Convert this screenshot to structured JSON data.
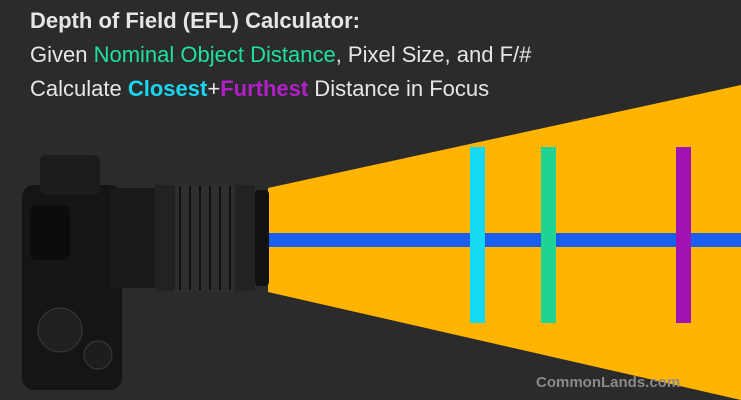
{
  "header": {
    "lines": [
      {
        "parts": [
          "Depth of Field (EFL) Calculator:"
        ]
      },
      {
        "parts": [
          "Given ",
          "Nominal Object Distance",
          ", Pixel Size, and F/#"
        ]
      },
      {
        "parts": [
          "Calculate ",
          "Closest",
          "+",
          "Furthest",
          " Distance in Focus"
        ]
      }
    ]
  },
  "footer": {
    "watermark": "CommonLands.com"
  }
}
